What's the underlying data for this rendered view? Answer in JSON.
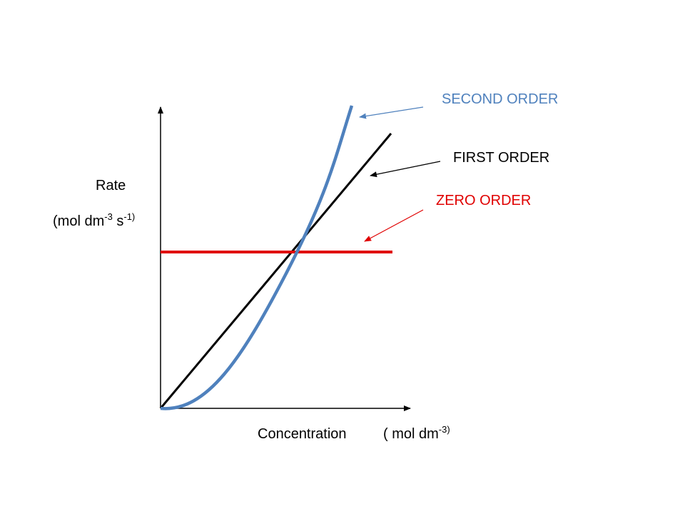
{
  "labels": {
    "second_order": "SECOND ORDER",
    "first_order": "FIRST ORDER",
    "zero_order": "ZERO ORDER"
  },
  "y_axis_label": {
    "title": "Rate",
    "unit_parts": [
      "(mol dm",
      "-3",
      " s",
      "-1)"
    ]
  },
  "x_axis_label": {
    "title": "Concentration",
    "unit_parts": [
      "( mol dm",
      "-3)"
    ]
  }
}
